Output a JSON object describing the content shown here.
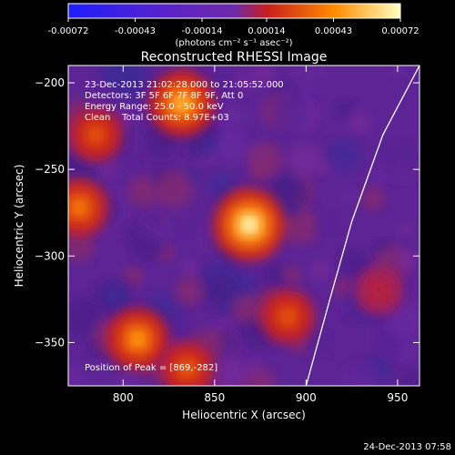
{
  "chart_data": {
    "type": "heatmap",
    "title": "Reconstructed RHESSI Image",
    "xlabel": "Heliocentric X (arcsec)",
    "ylabel": "Heliocentric Y (arcsec)",
    "xlim": [
      770,
      962
    ],
    "ylim": [
      -375,
      -190
    ],
    "x_ticks": [
      800,
      850,
      900,
      950
    ],
    "y_ticks": [
      -200,
      -250,
      -300,
      -350
    ],
    "grid": false,
    "colorbar": {
      "min": -0.00072,
      "max": 0.00072,
      "tick_values": [
        -0.00072,
        -0.00043,
        -0.00014,
        0.00014,
        0.00043,
        0.00072
      ],
      "tick_labels": [
        "-0.00072",
        "-0.00043",
        "-0.00014",
        "0.00014",
        "0.00043",
        "0.00072"
      ],
      "units_label": "(photons cm⁻² s⁻¹ asec⁻²)",
      "colors": [
        "#1e1eff",
        "#5a23c8",
        "#6e2aa8",
        "#c81e1e",
        "#ff8c00",
        "#ffffc0"
      ]
    },
    "annotations": [
      "23-Dec-2013 21:02:28.000 to 21:05:52.000",
      "Detectors: 3F 5F 6F 7F 8F 9F, Att 0",
      "Energy Range: 25.0 - 50.0 keV",
      "Clean    Total Counts: 8.97E+03"
    ],
    "peak_label": "Position of Peak = [869,-282]",
    "peak": {
      "x": 869,
      "y": -282
    },
    "sources": [
      {
        "x": 869,
        "y": -282,
        "intensity": 0.00072
      },
      {
        "x": 832,
        "y": -212,
        "intensity": 0.00055
      },
      {
        "x": 808,
        "y": -348,
        "intensity": 0.00048
      },
      {
        "x": 776,
        "y": -272,
        "intensity": 0.0004
      },
      {
        "x": 785,
        "y": -230,
        "intensity": 0.0003
      },
      {
        "x": 835,
        "y": -365,
        "intensity": 0.00032
      },
      {
        "x": 890,
        "y": -335,
        "intensity": 0.0003
      },
      {
        "x": 940,
        "y": -320,
        "intensity": 0.00012
      }
    ],
    "limb_curve": [
      [
        962,
        -190
      ],
      [
        942,
        -230
      ],
      [
        925,
        -280
      ],
      [
        913,
        -325
      ],
      [
        900,
        -375
      ]
    ],
    "timestamp": "24-Dec-2013 07:58"
  }
}
